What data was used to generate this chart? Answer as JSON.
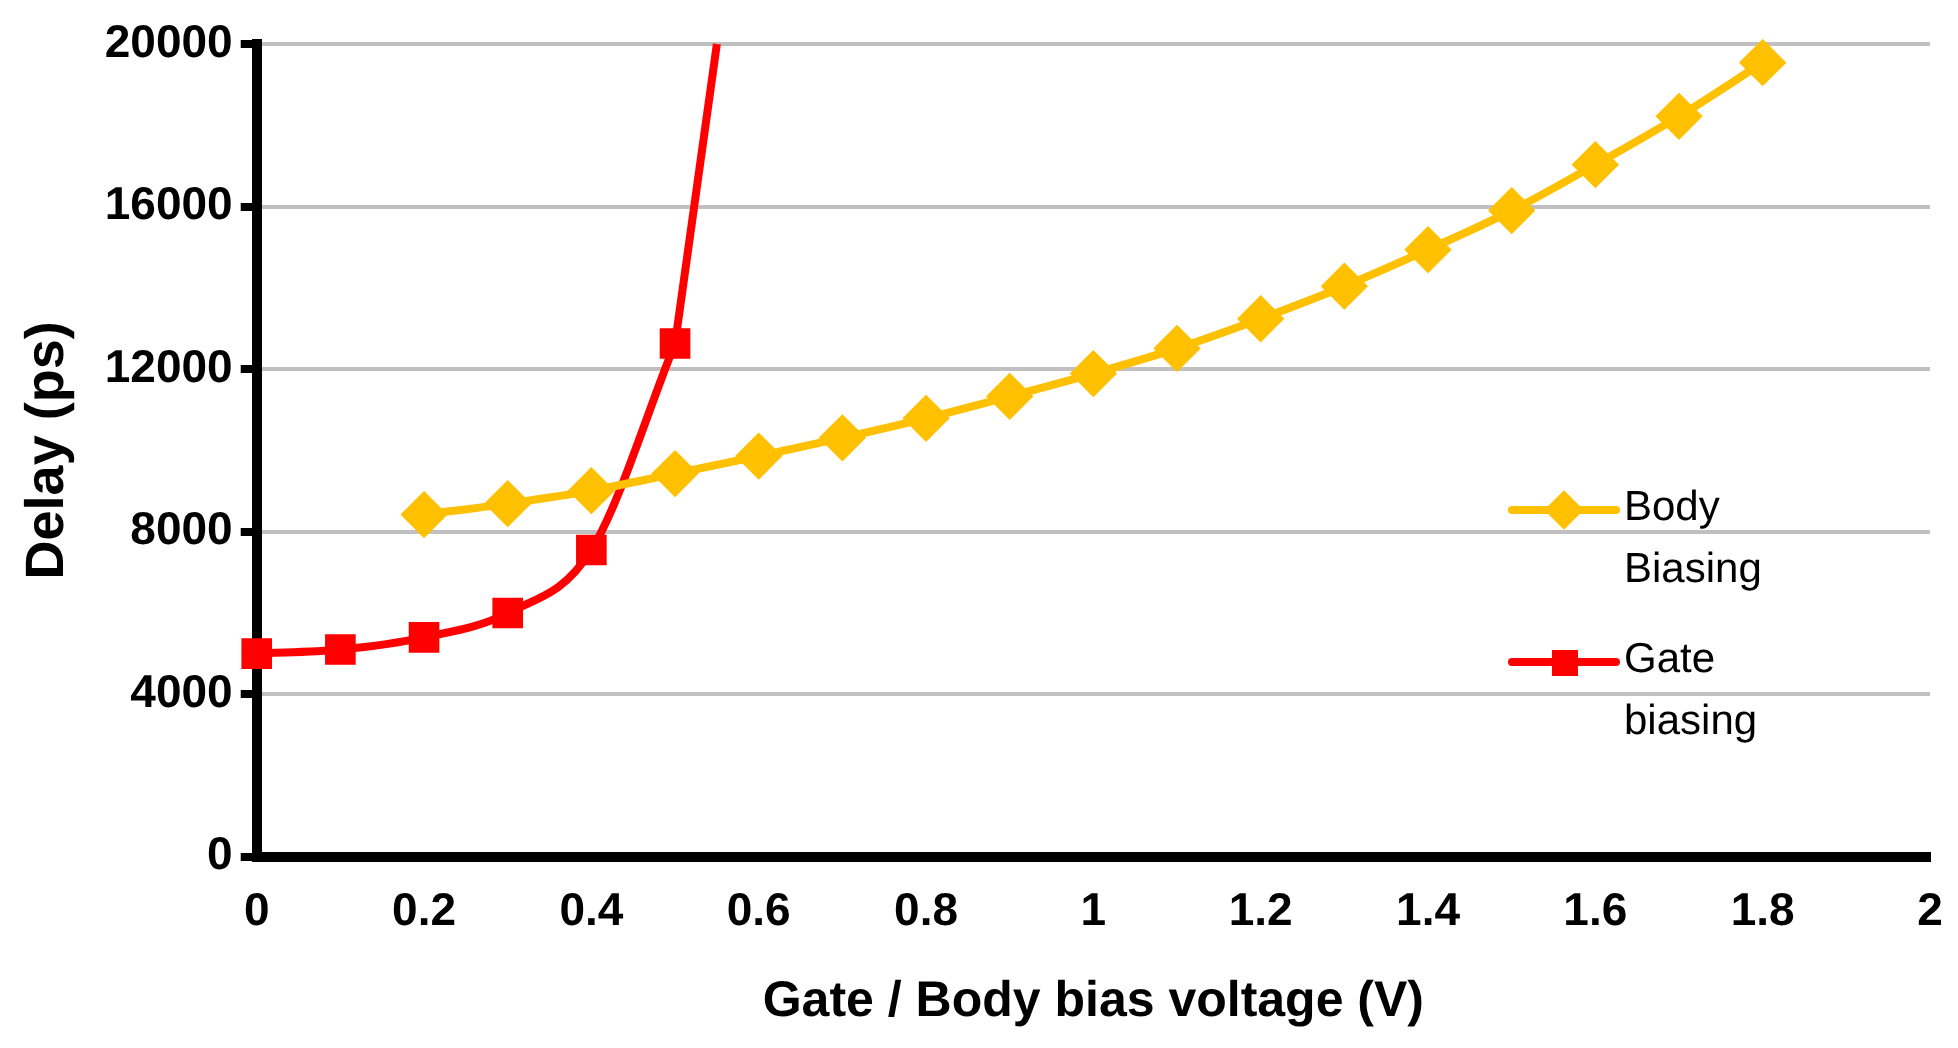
{
  "chart_data": {
    "type": "line",
    "xlabel": "Gate / Body bias voltage (V)",
    "ylabel": "Delay (ps)",
    "xlim": [
      0,
      2
    ],
    "xticks": [
      0,
      0.2,
      0.4,
      0.6,
      0.8,
      1,
      1.2,
      1.4,
      1.6,
      1.8,
      2
    ],
    "ylim": [
      0,
      20000
    ],
    "yticks": [
      0,
      4000,
      8000,
      12000,
      16000,
      20000
    ],
    "grid": "y",
    "legend": "right",
    "series": [
      {
        "name": "Body Biasing",
        "color": "#ffc000",
        "marker": "diamond",
        "x": [
          0.2,
          0.3,
          0.4,
          0.5,
          0.6,
          0.7,
          0.8,
          0.9,
          1,
          1.1,
          1.2,
          1.3,
          1.4,
          1.5,
          1.6,
          1.7,
          1.8
        ],
        "values": [
          8420,
          8690,
          9010,
          9430,
          9860,
          10310,
          10790,
          11330,
          11890,
          12510,
          13240,
          14040,
          14940,
          15900,
          17030,
          18220,
          19540
        ]
      },
      {
        "name": "Gate biasing",
        "color": "#ff0000",
        "marker": "square",
        "x": [
          0,
          0.1,
          0.2,
          0.3,
          0.4,
          0.5
        ],
        "values": [
          5000,
          5100,
          5400,
          6000,
          7550,
          12630
        ]
      },
      {
        "color": "#ff0000",
        "marker": "none",
        "x": [
          0.5,
          0.55
        ],
        "values": [
          12630,
          20000
        ]
      }
    ]
  }
}
